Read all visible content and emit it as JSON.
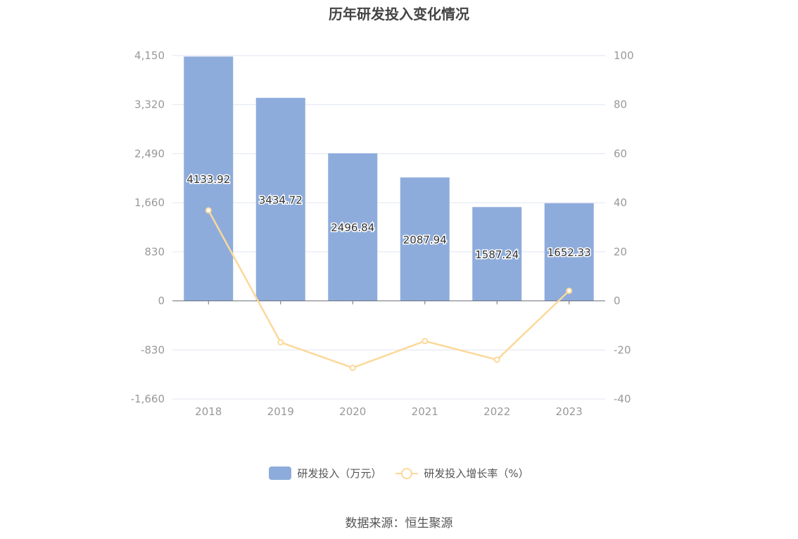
{
  "chart_data": {
    "type": "bar",
    "title": "历年研发投入变化情况",
    "categories": [
      "2018",
      "2019",
      "2020",
      "2021",
      "2022",
      "2023"
    ],
    "series": [
      {
        "name": "研发投入（万元）",
        "type": "bar",
        "axis": "left",
        "values": [
          4133.92,
          3434.72,
          2496.84,
          2087.94,
          1587.24,
          1652.33
        ],
        "labels": [
          "4133.92",
          "3434.72",
          "2496.84",
          "2087.94",
          "1587.24",
          "1652.33"
        ]
      },
      {
        "name": "研发投入增长率（%）",
        "type": "line",
        "axis": "right",
        "values": [
          36.9,
          -16.9,
          -27.3,
          -16.4,
          -24.0,
          4.1
        ]
      }
    ],
    "y_left": {
      "ylim": [
        -1660,
        4150
      ],
      "ticks": [
        4150,
        3320,
        2490,
        1660,
        830,
        0,
        -830,
        -1660
      ],
      "tick_labels": [
        "4,150",
        "3,320",
        "2,490",
        "1,660",
        "830",
        "0",
        "-830",
        "-1,660"
      ]
    },
    "y_right": {
      "ylim": [
        -40,
        100
      ],
      "ticks": [
        100,
        80,
        60,
        40,
        20,
        0,
        -20,
        -40
      ],
      "tick_labels": [
        "100",
        "80",
        "60",
        "40",
        "20",
        "0",
        "-20",
        "-40"
      ]
    },
    "grid": true,
    "legend_position": "bottom-center",
    "colors": {
      "bar": "#8eacdb",
      "line": "#fbd99a",
      "grid": "#e0e6f1",
      "axis": "#6e7079",
      "tick_text": "#999999",
      "label_text": "#333333"
    }
  },
  "source_note": "数据来源：恒生聚源"
}
